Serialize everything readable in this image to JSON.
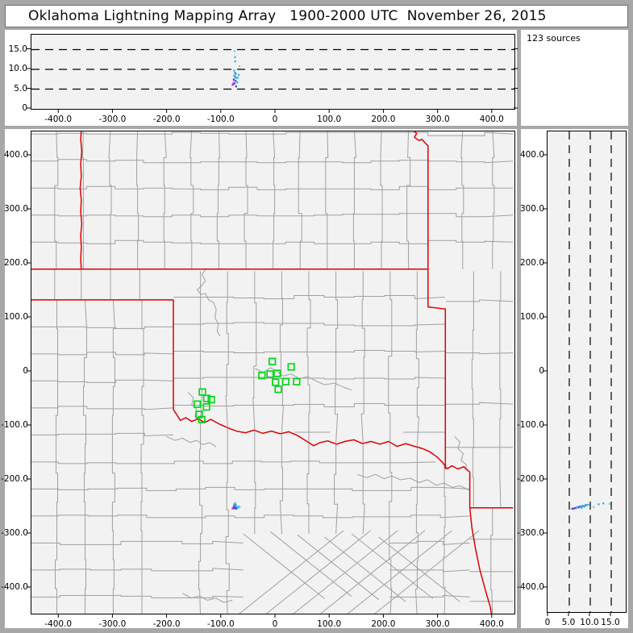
{
  "title": "Oklahoma Lightning Mapping Array   1900-2000 UTC  November 26, 2015",
  "sources_label": "123 sources",
  "colors": {
    "frame": "#a7a7a7",
    "panel_bg": "#f2f2f2",
    "county_line": "#a0a0a0",
    "state_border": "#dd0000",
    "station": "#00d718",
    "axis": "#000000"
  },
  "axes": {
    "km_ticks": {
      "values": [
        -400,
        -300,
        -200,
        -100,
        0,
        100,
        200,
        300,
        400
      ],
      "labels": [
        "-400.0",
        "-300.0",
        "-200.0",
        "-100.0",
        "0",
        "100.0",
        "200.0",
        "300.0",
        "400.0"
      ]
    },
    "alt_ticks": {
      "values": [
        0,
        5,
        10,
        15
      ],
      "labels": [
        "0",
        "5.0",
        "10.0",
        "15.0"
      ]
    },
    "alt_dash_values": [
      5,
      10,
      15
    ]
  },
  "chart_data": {
    "type": "scatter",
    "title": "Oklahoma Lightning Mapping Array 1900-2000 UTC November 26, 2015",
    "sources_count_label": "123 sources",
    "panels": [
      {
        "id": "ew_alt",
        "x": "east-west km",
        "y": "altitude km",
        "xlim": [
          -454,
          441
        ],
        "ylim": [
          0,
          18.8
        ],
        "dashes_y": [
          5,
          10,
          15
        ]
      },
      {
        "id": "plan_view",
        "x": "east-west km",
        "y": "north-south km",
        "xlim": [
          -454,
          441
        ],
        "ylim": [
          -448,
          445
        ]
      },
      {
        "id": "alt_ns",
        "x": "altitude km",
        "y": "north-south km",
        "xlim": [
          0,
          18.5
        ],
        "ylim": [
          -448,
          445
        ],
        "dashes_x": [
          5,
          10,
          15
        ]
      }
    ],
    "stations_km": [
      [
        -6.4,
        19.0
      ],
      [
        28.5,
        9.0
      ],
      [
        -10.5,
        -4.5
      ],
      [
        2.5,
        -3.0
      ],
      [
        -25.5,
        -7.0
      ],
      [
        -0.4,
        -19.5
      ],
      [
        18.4,
        -18.4
      ],
      [
        38.5,
        -18.4
      ],
      [
        4.5,
        -32.5
      ],
      [
        -135.4,
        -37.5
      ],
      [
        -127.4,
        -49.5
      ],
      [
        -118.9,
        -51.7
      ],
      [
        -145.0,
        -60.0
      ],
      [
        -127.9,
        -65.2
      ],
      [
        -141.4,
        -79.0
      ],
      [
        -136.4,
        -88.5
      ]
    ],
    "sources": [
      {
        "ew": -75.2,
        "ns": -243.5,
        "alt": 13.1,
        "color": "#35b5e8"
      },
      {
        "ew": -76.0,
        "ns": -244.5,
        "alt": 14.6,
        "color": "#6ecff0"
      },
      {
        "ew": -74.8,
        "ns": -245.2,
        "alt": 12.0,
        "color": "#35b5e8"
      },
      {
        "ew": -77.0,
        "ns": -246.0,
        "alt": 9.7,
        "color": "#35b5e8"
      },
      {
        "ew": -75.6,
        "ns": -246.5,
        "alt": 9.2,
        "color": "#35b5e8"
      },
      {
        "ew": -74.2,
        "ns": -247.0,
        "alt": 8.9,
        "color": "#2f7fd6"
      },
      {
        "ew": -76.6,
        "ns": -248.0,
        "alt": 8.4,
        "color": "#35b5e8"
      },
      {
        "ew": -75.0,
        "ns": -249.0,
        "alt": 8.1,
        "color": "#2f7fd6"
      },
      {
        "ew": -73.6,
        "ns": -248.5,
        "alt": 7.8,
        "color": "#35b5e8"
      },
      {
        "ew": -77.6,
        "ns": -250.0,
        "alt": 7.4,
        "color": "#2b52c8"
      },
      {
        "ew": -74.6,
        "ns": -251.0,
        "alt": 7.1,
        "color": "#8a2be2"
      },
      {
        "ew": -72.6,
        "ns": -250.5,
        "alt": 6.9,
        "color": "#35b5e8"
      },
      {
        "ew": -78.2,
        "ns": -252.0,
        "alt": 6.6,
        "color": "#e12ee1"
      },
      {
        "ew": -76.2,
        "ns": -252.5,
        "alt": 6.4,
        "color": "#8a2be2"
      },
      {
        "ew": -71.2,
        "ns": -251.0,
        "alt": 6.7,
        "color": "#35b5e8"
      },
      {
        "ew": -79.6,
        "ns": -253.0,
        "alt": 6.1,
        "color": "#b026d9"
      },
      {
        "ew": -73.2,
        "ns": -253.5,
        "alt": 5.7,
        "color": "#2b52c8"
      },
      {
        "ew": -70.2,
        "ns": -252.0,
        "alt": 7.9,
        "color": "#35b5e8"
      },
      {
        "ew": -68.2,
        "ns": -249.5,
        "alt": 8.6,
        "color": "#35b5e8"
      },
      {
        "ew": -66.8,
        "ns": -250.5,
        "alt": 10.8,
        "color": "#6ecff0"
      }
    ],
    "state_borders_km": [
      [
        [
          -359,
          448
        ],
        [
          -360,
          430
        ],
        [
          -358,
          408
        ],
        [
          -360,
          385
        ],
        [
          -359,
          362
        ],
        [
          -361,
          340
        ],
        [
          -359,
          318
        ],
        [
          -360,
          296
        ],
        [
          -358,
          274
        ],
        [
          -360,
          252
        ],
        [
          -359,
          230
        ],
        [
          -360,
          208
        ],
        [
          -359,
          190
        ]
      ],
      [
        [
          -454,
          190
        ],
        [
          281,
          190
        ]
      ],
      [
        [
          -454,
          133
        ],
        [
          -189,
          133
        ]
      ],
      [
        [
          -189,
          133
        ],
        [
          -189,
          -70
        ]
      ],
      [
        [
          -189,
          -70
        ],
        [
          -176,
          -90
        ],
        [
          -166,
          -85
        ],
        [
          -155,
          -92
        ],
        [
          -143,
          -87
        ],
        [
          -131,
          -94
        ],
        [
          -120,
          -88
        ],
        [
          -104,
          -97
        ],
        [
          -88,
          -104
        ],
        [
          -72,
          -110
        ],
        [
          -56,
          -113
        ],
        [
          -40,
          -108
        ],
        [
          -24,
          -114
        ],
        [
          -8,
          -110
        ],
        [
          8,
          -115
        ],
        [
          24,
          -111
        ],
        [
          40,
          -118
        ],
        [
          56,
          -128
        ],
        [
          70,
          -137
        ],
        [
          82,
          -131
        ],
        [
          96,
          -128
        ],
        [
          112,
          -134
        ],
        [
          128,
          -129
        ],
        [
          144,
          -126
        ],
        [
          160,
          -133
        ],
        [
          176,
          -129
        ],
        [
          192,
          -134
        ],
        [
          208,
          -129
        ],
        [
          224,
          -138
        ],
        [
          240,
          -133
        ],
        [
          256,
          -138
        ],
        [
          270,
          -142
        ],
        [
          284,
          -148
        ],
        [
          298,
          -158
        ],
        [
          308,
          -168
        ],
        [
          316,
          -180
        ]
      ],
      [
        [
          253,
          448
        ],
        [
          260,
          441
        ],
        [
          256,
          434
        ],
        [
          264,
          428
        ],
        [
          270,
          430
        ],
        [
          276,
          423
        ],
        [
          281,
          418
        ],
        [
          281,
          120
        ],
        [
          313,
          116
        ],
        [
          313,
          -180
        ]
      ],
      [
        [
          316,
          -180
        ],
        [
          325,
          -174
        ],
        [
          336,
          -180
        ],
        [
          347,
          -176
        ],
        [
          358,
          -186
        ]
      ],
      [
        [
          358,
          -186
        ],
        [
          358,
          -252
        ]
      ],
      [
        [
          358,
          -252
        ],
        [
          438,
          -252
        ]
      ],
      [
        [
          358,
          -252
        ],
        [
          362,
          -290
        ],
        [
          369,
          -330
        ],
        [
          377,
          -368
        ],
        [
          388,
          -408
        ],
        [
          396,
          -436
        ],
        [
          399,
          -455
        ]
      ]
    ],
    "rivers_km": [
      [
        [
          -128,
          192
        ],
        [
          -136,
          180
        ],
        [
          -130,
          168
        ],
        [
          -138,
          158
        ],
        [
          -145,
          152
        ],
        [
          -138,
          143
        ],
        [
          -130,
          145
        ],
        [
          -124,
          133
        ],
        [
          -115,
          128
        ],
        [
          -110,
          115
        ],
        [
          -112,
          100
        ],
        [
          -106,
          88
        ],
        [
          -108,
          75
        ],
        [
          -103,
          66
        ]
      ],
      [
        [
          -38,
          6
        ],
        [
          -24,
          -1
        ],
        [
          -10,
          7
        ],
        [
          2,
          1
        ],
        [
          14,
          -8
        ],
        [
          28,
          -4
        ],
        [
          44,
          -13
        ],
        [
          58,
          -9
        ],
        [
          74,
          -17
        ],
        [
          90,
          -24
        ],
        [
          108,
          -21
        ],
        [
          126,
          -29
        ],
        [
          140,
          -34
        ]
      ],
      [
        [
          -162,
          -38
        ],
        [
          -152,
          -48
        ],
        [
          -155,
          -60
        ],
        [
          -146,
          -70
        ],
        [
          -149,
          -83
        ],
        [
          -141,
          -91
        ]
      ],
      [
        [
          -202,
          -120
        ],
        [
          -186,
          -127
        ],
        [
          -172,
          -123
        ],
        [
          -158,
          -131
        ],
        [
          -146,
          -127
        ],
        [
          -134,
          -135
        ],
        [
          -122,
          -131
        ],
        [
          -110,
          -139
        ]
      ],
      [
        [
          150,
          -190
        ],
        [
          168,
          -196
        ],
        [
          184,
          -190
        ],
        [
          200,
          -198
        ],
        [
          214,
          -193
        ],
        [
          230,
          -200
        ],
        [
          248,
          -197
        ],
        [
          264,
          -205
        ],
        [
          280,
          -200
        ],
        [
          296,
          -210
        ],
        [
          310,
          -206
        ],
        [
          326,
          -214
        ],
        [
          340,
          -211
        ],
        [
          356,
          -219
        ]
      ],
      [
        [
          -172,
          -410
        ],
        [
          -156,
          -419
        ],
        [
          -141,
          -415
        ],
        [
          -126,
          -423
        ],
        [
          -111,
          -419
        ],
        [
          -96,
          -427
        ],
        [
          -80,
          -423
        ]
      ],
      [
        [
          330,
          -120
        ],
        [
          340,
          -130
        ],
        [
          336,
          -142
        ],
        [
          346,
          -152
        ],
        [
          342,
          -164
        ],
        [
          352,
          -172
        ],
        [
          350,
          -182
        ]
      ]
    ]
  }
}
